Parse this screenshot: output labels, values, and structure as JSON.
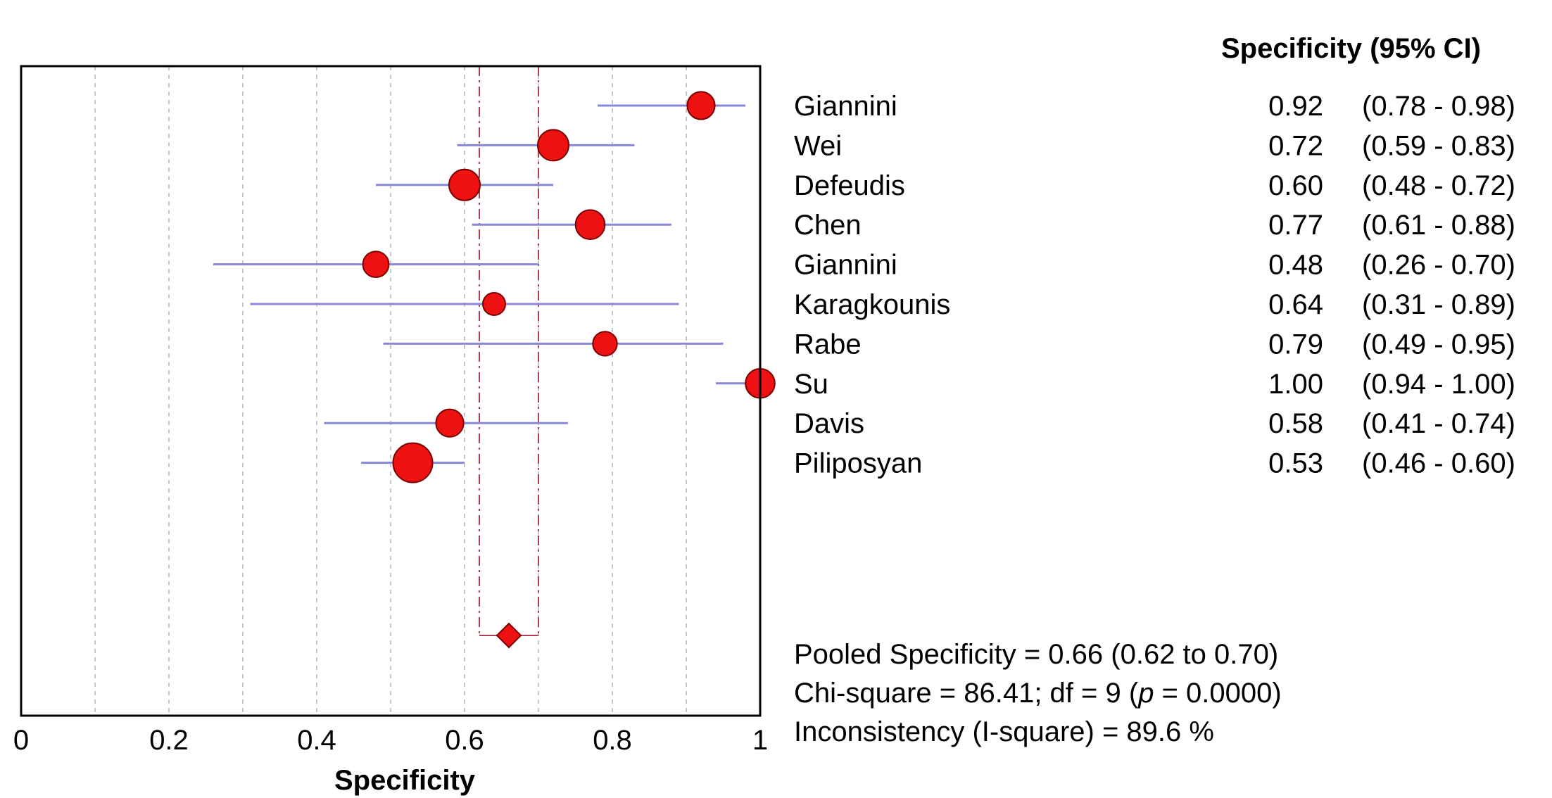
{
  "chart_data": {
    "type": "forest",
    "xlabel": "Specificity",
    "xlim": [
      0,
      1
    ],
    "x_ticks": [
      0,
      0.2,
      0.4,
      0.6,
      0.8,
      1
    ],
    "x_tick_labels": [
      "0",
      "0.2",
      "0.4",
      "0.6",
      "0.8",
      "1"
    ],
    "grid_minor_step": 0.1,
    "table_header": "Specificity (95% CI)",
    "studies": [
      {
        "name": "Giannini",
        "value": 0.92,
        "lower": 0.78,
        "upper": 0.98,
        "value_text": "0.92",
        "ci_text": "(0.78 - 0.98)",
        "weight": 0.8
      },
      {
        "name": "Wei",
        "value": 0.72,
        "lower": 0.59,
        "upper": 0.83,
        "value_text": "0.72",
        "ci_text": "(0.59 - 0.83)",
        "weight": 1.0
      },
      {
        "name": "Defeudis",
        "value": 0.6,
        "lower": 0.48,
        "upper": 0.72,
        "value_text": "0.60",
        "ci_text": "(0.48 - 0.72)",
        "weight": 1.0
      },
      {
        "name": "Chen",
        "value": 0.77,
        "lower": 0.61,
        "upper": 0.88,
        "value_text": "0.77",
        "ci_text": "(0.61 - 0.88)",
        "weight": 0.9
      },
      {
        "name": "Giannini",
        "value": 0.48,
        "lower": 0.26,
        "upper": 0.7,
        "value_text": "0.48",
        "ci_text": "(0.26 - 0.70)",
        "weight": 0.7
      },
      {
        "name": "Karagkounis",
        "value": 0.64,
        "lower": 0.31,
        "upper": 0.89,
        "value_text": "0.64",
        "ci_text": "(0.31 - 0.89)",
        "weight": 0.5
      },
      {
        "name": "Rabe",
        "value": 0.79,
        "lower": 0.49,
        "upper": 0.95,
        "value_text": "0.79",
        "ci_text": "(0.49 - 0.95)",
        "weight": 0.6
      },
      {
        "name": "Su",
        "value": 1.0,
        "lower": 0.94,
        "upper": 1.0,
        "value_text": "1.00",
        "ci_text": "(0.94 - 1.00)",
        "weight": 0.9
      },
      {
        "name": "Davis",
        "value": 0.58,
        "lower": 0.41,
        "upper": 0.74,
        "value_text": "0.58",
        "ci_text": "(0.41 - 0.74)",
        "weight": 0.8
      },
      {
        "name": "Piliposyan",
        "value": 0.53,
        "lower": 0.46,
        "upper": 0.6,
        "value_text": "0.53",
        "ci_text": "(0.46 - 0.60)",
        "weight": 1.5
      }
    ],
    "pooled": {
      "value": 0.66,
      "lower": 0.62,
      "upper": 0.7
    },
    "summary_lines": [
      {
        "parts": [
          {
            "text": "Pooled Specificity = 0.66 (0.62 to 0.70)",
            "italic": false
          }
        ]
      },
      {
        "parts": [
          {
            "text": "Chi-square = 86.41; df =  9 (",
            "italic": false
          },
          {
            "text": "p",
            "italic": true
          },
          {
            "text": " = 0.0000)",
            "italic": false
          }
        ]
      },
      {
        "parts": [
          {
            "text": "Inconsistency (I-square) = 89.6 %",
            "italic": false
          }
        ]
      }
    ],
    "colors": {
      "marker_fill": "#ee1111",
      "marker_stroke": "#7a0000",
      "ci_line": "#8a88d6",
      "pooled_line": "#b04050",
      "grid": "#c8c8c8",
      "frame": "#000000"
    }
  }
}
